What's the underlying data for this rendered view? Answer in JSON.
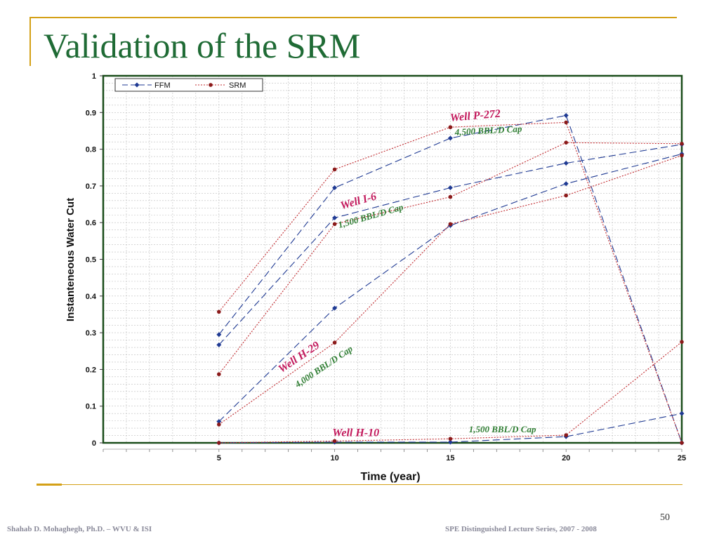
{
  "slide": {
    "title": "Validation of the SRM",
    "page_number": "50",
    "footer_left": "Shahab D. Mohaghegh, Ph.D. – WVU & ISI",
    "footer_right": "SPE Distinguished Lecture Series, 2007 - 2008"
  },
  "colors": {
    "accent": "#d4a017",
    "title": "#1f6b35",
    "ffm": "#1f3a93",
    "srm": "#c0282d",
    "plot_border": "#1a4d1a",
    "well_label": "#c2185b",
    "cap_label": "#2e7d32"
  },
  "chart_data": {
    "type": "line",
    "xlabel": "Time (year)",
    "ylabel": "Instanteneous Water Cut",
    "xlim": [
      0,
      25
    ],
    "ylim": [
      0,
      1
    ],
    "x_ticks": [
      5,
      10,
      15,
      20,
      25
    ],
    "y_ticks": [
      0,
      0.1,
      0.2,
      0.3,
      0.4,
      0.5,
      0.6,
      0.7,
      0.8,
      0.9,
      1
    ],
    "y_tick_labels": [
      "0",
      "0.1",
      "0.2",
      "0.3",
      "0.4",
      "0.5",
      "0.6",
      "0.7",
      "0.8",
      "0.9",
      "1"
    ],
    "grid": true,
    "legend": {
      "placement": "top-left",
      "entries": [
        "FFM",
        "SRM"
      ]
    },
    "x": [
      5,
      10,
      15,
      20,
      25
    ],
    "series": [
      {
        "name": "FFM",
        "values": [
          0.295,
          0.695,
          0.83,
          0.892,
          0.0
        ]
      },
      {
        "name": "SRM",
        "values": [
          0.357,
          0.745,
          0.86,
          0.873,
          0.0
        ]
      },
      {
        "name": "FFM",
        "values": [
          0.267,
          0.613,
          0.695,
          0.762,
          0.813
        ]
      },
      {
        "name": "SRM",
        "values": [
          0.187,
          0.596,
          0.67,
          0.818,
          0.815
        ]
      },
      {
        "name": "FFM",
        "values": [
          0.058,
          0.367,
          0.592,
          0.706,
          0.787
        ]
      },
      {
        "name": "SRM",
        "values": [
          0.05,
          0.273,
          0.596,
          0.674,
          0.783
        ]
      },
      {
        "name": "FFM",
        "values": [
          0.0,
          0.002,
          0.002,
          0.017,
          0.08
        ]
      },
      {
        "name": "SRM",
        "values": [
          0.0,
          0.005,
          0.011,
          0.021,
          0.275
        ]
      }
    ],
    "annotations": [
      {
        "text": "Well P-272",
        "kind": "well",
        "x": 15.0,
        "y": 0.876,
        "angle": -5
      },
      {
        "text": "4,500 BBL/D Cap",
        "kind": "cap",
        "x": 15.2,
        "y": 0.838,
        "angle": -3
      },
      {
        "text": "Well I-6",
        "kind": "well",
        "x": 10.3,
        "y": 0.636,
        "angle": -16
      },
      {
        "text": "1,500 BBL/D Cap",
        "kind": "cap",
        "x": 10.2,
        "y": 0.585,
        "angle": -16
      },
      {
        "text": "Well H-29",
        "kind": "well",
        "x": 7.7,
        "y": 0.19,
        "angle": -34
      },
      {
        "text": "4,000 BBL/D Cap",
        "kind": "cap",
        "x": 8.4,
        "y": 0.15,
        "angle": -34
      },
      {
        "text": "Well H-10",
        "kind": "well",
        "x": 9.9,
        "y": 0.018,
        "angle": 0
      },
      {
        "text": "1,500 BBL/D Cap",
        "kind": "cap",
        "x": 15.8,
        "y": 0.029,
        "angle": 0
      }
    ]
  }
}
